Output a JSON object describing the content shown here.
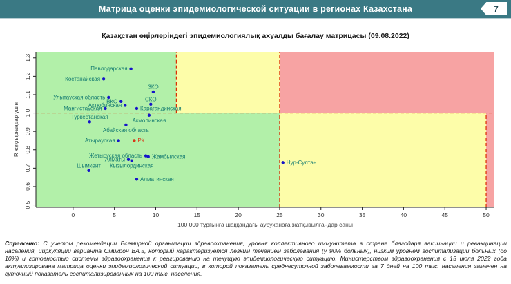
{
  "header": {
    "title": "Матрица оценки эпидемиологической ситуации в регионах Казахстана",
    "page_number": "7"
  },
  "chart_data": {
    "type": "scatter",
    "title": "Қазақстан өңірлеріндегі эпидемиологиялық ахуалды бағалау матрицасы  (09.08.2022)",
    "xlabel": "100 000 тұрғынға шаққандағы ауруханаға жатқызылғандар саны",
    "ylabel": "R жұқтырғандар үшін",
    "xlim": [
      -4.5,
      51
    ],
    "ylim": [
      0.487,
      1.333
    ],
    "x_ticks": [
      0,
      5,
      10,
      15,
      20,
      25,
      30,
      35,
      40,
      45,
      50
    ],
    "y_ticks": [
      0.5,
      0.6,
      0.7,
      0.8,
      0.9,
      1.0,
      1.1,
      1.2,
      1.3
    ],
    "grid": false,
    "legend": "none",
    "colors": {
      "green": "#b2f0a9",
      "yellow": "#fdfda9",
      "red": "#f7a3a3",
      "dashed": "#dd2b00",
      "point": "#1515c8",
      "label": "#177d72",
      "accent": "#d93616",
      "axis": "#222222",
      "tick_text": "#333333"
    },
    "regions": [
      {
        "x1": "min",
        "x2": 12.5,
        "y1": 1.0,
        "y2": "max",
        "color": "green"
      },
      {
        "x1": 12.5,
        "x2": 25,
        "y1": 1.0,
        "y2": "max",
        "color": "yellow"
      },
      {
        "x1": 25,
        "x2": "max",
        "y1": 1.0,
        "y2": "max",
        "color": "red"
      },
      {
        "x1": "min",
        "x2": 25,
        "y1": "min",
        "y2": 1.0,
        "color": "green"
      },
      {
        "x1": 25,
        "x2": 50,
        "y1": "min",
        "y2": 1.0,
        "color": "yellow"
      },
      {
        "x1": 50,
        "x2": "max",
        "y1": "min",
        "y2": 1.0,
        "color": "red"
      }
    ],
    "dashed_lines": [
      {
        "type": "h",
        "at": 1.0,
        "from": "min",
        "to": "max"
      },
      {
        "type": "v",
        "at": 12.5,
        "from": 1.0,
        "to": "max"
      },
      {
        "type": "v",
        "at": 25,
        "from": "min",
        "to": "max"
      },
      {
        "type": "v",
        "at": 50,
        "from": "min",
        "to": 1.0
      }
    ],
    "points": [
      {
        "name": "Павлодарская",
        "x": 7.0,
        "y": 1.24,
        "pos": "left"
      },
      {
        "name": "Костанайская",
        "x": 3.7,
        "y": 1.185,
        "pos": "left"
      },
      {
        "name": "ЗКО",
        "x": 9.7,
        "y": 1.115,
        "pos": "above"
      },
      {
        "name": "Улытауская область",
        "x": 4.3,
        "y": 1.085,
        "pos": "left"
      },
      {
        "name": "ВКО",
        "x": 5.8,
        "y": 1.063,
        "pos": "left"
      },
      {
        "name": "Актюбинская",
        "x": 6.3,
        "y": 1.042,
        "pos": "left"
      },
      {
        "name": "СКО",
        "x": 9.4,
        "y": 1.048,
        "pos": "above"
      },
      {
        "name": "Мангистауская",
        "x": 3.9,
        "y": 1.025,
        "pos": "left"
      },
      {
        "name": "Карагандинская",
        "x": 7.7,
        "y": 1.025,
        "pos": "right"
      },
      {
        "name": "Акмолинская",
        "x": 9.2,
        "y": 0.988,
        "pos": "below"
      },
      {
        "name": "Туркестанская",
        "x": 2.0,
        "y": 0.952,
        "pos": "above"
      },
      {
        "name": "Абайская область",
        "x": 6.4,
        "y": 0.935,
        "pos": "below"
      },
      {
        "name": "Атырауская",
        "x": 5.5,
        "y": 0.85,
        "pos": "left"
      },
      {
        "name": "РК",
        "x": 7.4,
        "y": 0.85,
        "pos": "right",
        "accent": true
      },
      {
        "name": "Жетысуская область",
        "x": 8.8,
        "y": 0.767,
        "pos": "left"
      },
      {
        "name": "Жамбылская",
        "x": 9.1,
        "y": 0.762,
        "pos": "right"
      },
      {
        "name": "Алматы",
        "x": 6.7,
        "y": 0.747,
        "pos": "left"
      },
      {
        "name": "Кызылординская",
        "x": 7.1,
        "y": 0.74,
        "pos": "below"
      },
      {
        "name": "Шымкент",
        "x": 1.9,
        "y": 0.687,
        "pos": "above"
      },
      {
        "name": "Алматинская",
        "x": 7.7,
        "y": 0.64,
        "pos": "right"
      },
      {
        "name": "Нур-Султан",
        "x": 25.4,
        "y": 0.73,
        "pos": "right"
      }
    ]
  },
  "footnote": {
    "label": "Справочно:",
    "text": " С учетом рекомендации Всемирной организации здравоохранения, уровня коллективного иммунитета в стране благодаря вакцинации и ревакцинации населения, циркуляции варианта Омикрон ВА.5, который характеризуется легким течением заболевания (у 90% больных), низким уровнем госпитализации больных (до 10%) и готовностью системы здравоохранения к реагированию на текущую эпидемиологическую ситуацию, Министерством здравоохранения с 15 июля 2022 года актуализирована матрица оценки эпидемиологической ситуации, в которой показатель  среднесуточной заболеваемости за 7 дней на 100 тыс. населения заменен на  суточный показатель госпитализированных на 100 тыс. населения."
  }
}
